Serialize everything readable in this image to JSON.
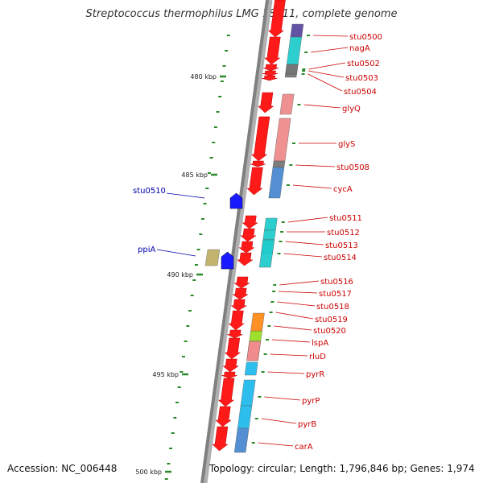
{
  "title": "Streptococcus thermophilus LMG 18311, complete genome",
  "footer": {
    "accession": "Accession: NC_006448",
    "topology": "Topology: circular; Length: 1,796,846 bp; Genes: 1,974"
  },
  "colors": {
    "forward_label": "#cc0000",
    "reverse_label": "#0000aa",
    "backbone": "#808080",
    "scale_tick": "#2a8a2a",
    "forward_arrow": "#ff1a1a",
    "reverse_arrow": "#1a1aff"
  },
  "scale_labels": [
    "480 kbp",
    "485 kbp",
    "490 kbp",
    "495 kbp",
    "500 kbp"
  ],
  "forward_genes": [
    {
      "name": "stu0500",
      "color": "#5b4aa0"
    },
    {
      "name": "nagA",
      "color": "#22cccc"
    },
    {
      "name": "stu0502",
      "color": "#777777"
    },
    {
      "name": "stu0503",
      "color": "#777777"
    },
    {
      "name": "stu0504",
      "color": "#777777"
    },
    {
      "name": "glyQ",
      "color": "#f08c8c"
    },
    {
      "name": "glyS",
      "color": "#f08c8c"
    },
    {
      "name": "stu0508",
      "color": "#777777"
    },
    {
      "name": "cycA",
      "color": "#4a8ad0"
    },
    {
      "name": "stu0511",
      "color": "#22cccc"
    },
    {
      "name": "stu0512",
      "color": "#22cccc"
    },
    {
      "name": "stu0513",
      "color": "#22cccc"
    },
    {
      "name": "stu0514",
      "color": "#22cccc"
    },
    {
      "name": "stu0516",
      "color": "#ff1a1a"
    },
    {
      "name": "stu0517",
      "color": "#ff1a1a"
    },
    {
      "name": "stu0518",
      "color": "#ff1a1a"
    },
    {
      "name": "stu0519",
      "color": "#ff8c1a"
    },
    {
      "name": "stu0520",
      "color": "#99dd22"
    },
    {
      "name": "lspA",
      "color": "#f08c8c"
    },
    {
      "name": "rluD",
      "color": "#f08c8c"
    },
    {
      "name": "pyrR",
      "color": "#22bbee"
    },
    {
      "name": "pyrP",
      "color": "#22bbee"
    },
    {
      "name": "pyrB",
      "color": "#22bbee"
    },
    {
      "name": "carA",
      "color": "#4a8ad0"
    }
  ],
  "reverse_genes": [
    {
      "name": "stu0510",
      "color": "#1a1aff"
    },
    {
      "name": "ppiA",
      "color": "#c2b46e"
    }
  ]
}
